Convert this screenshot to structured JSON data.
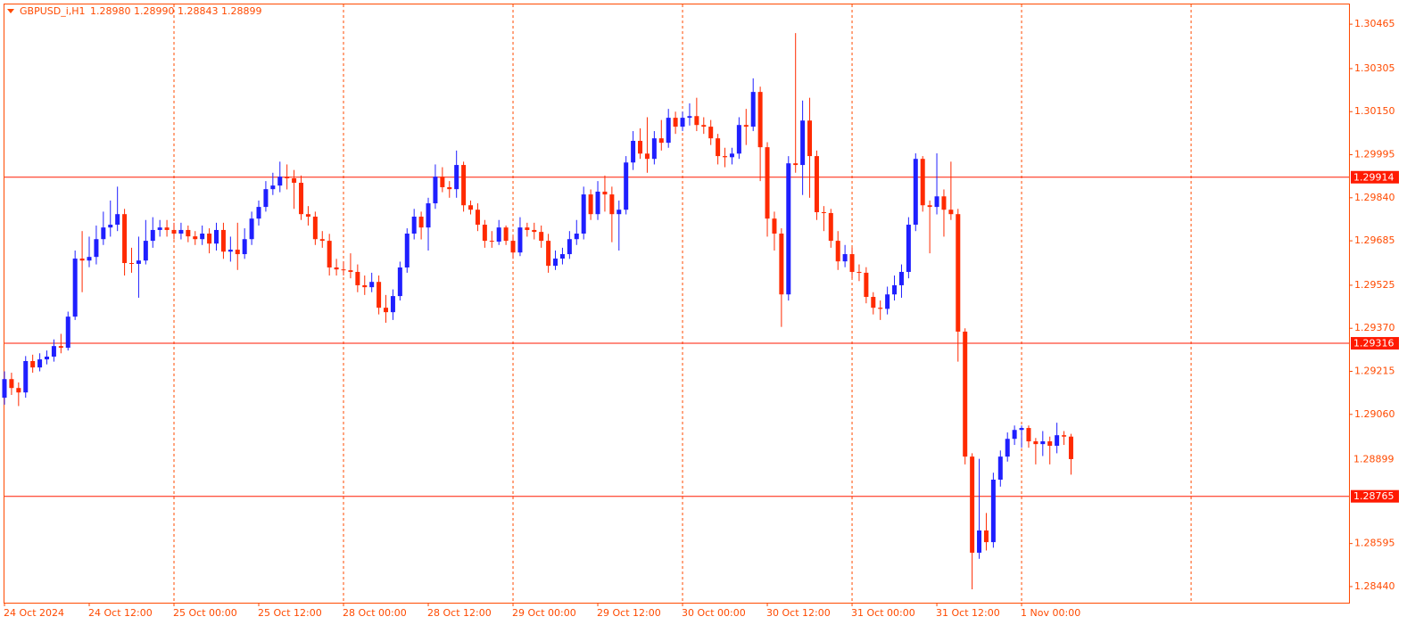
{
  "chart_data": {
    "type": "candlestick",
    "title": "GBPUSD_i,H1",
    "last_bar_labels": [
      "1.28980",
      "1.28990",
      "1.28843",
      "1.28899"
    ],
    "bull_color": "#1f1fff",
    "bear_color": "#ff2a00",
    "hline_color": "#ff1a00",
    "grid": true,
    "ylim": [
      1.28382,
      1.30536
    ],
    "yticks": [
      1.30465,
      1.30305,
      {
        "value": 1.3015,
        "label": "1.30150"
      },
      1.29995,
      {
        "value": 1.2984,
        "label": "1.29840"
      },
      1.29685,
      1.29525,
      {
        "value": 1.2937,
        "label": "1.29370"
      },
      1.29215,
      {
        "value": 1.2906,
        "label": "1.29060"
      },
      1.28595,
      {
        "value": 1.2844,
        "label": "1.28440"
      }
    ],
    "hlines": [
      1.29914,
      1.29316,
      1.28765
    ],
    "categories": [
      "24 Oct 2024",
      null,
      null,
      null,
      null,
      null,
      null,
      null,
      null,
      null,
      null,
      null,
      "24 Oct 12:00",
      null,
      null,
      null,
      null,
      null,
      null,
      null,
      null,
      null,
      null,
      null,
      "25 Oct 00:00",
      null,
      null,
      null,
      null,
      null,
      null,
      null,
      null,
      null,
      null,
      null,
      "25 Oct 12:00",
      null,
      null,
      null,
      null,
      null,
      null,
      null,
      null,
      null,
      null,
      null,
      "28 Oct 00:00",
      null,
      null,
      null,
      null,
      null,
      null,
      null,
      null,
      null,
      null,
      null,
      "28 Oct 12:00",
      null,
      null,
      null,
      null,
      null,
      null,
      null,
      null,
      null,
      null,
      null,
      "29 Oct 00:00",
      null,
      null,
      null,
      null,
      null,
      null,
      null,
      null,
      null,
      null,
      null,
      "29 Oct 12:00",
      null,
      null,
      null,
      null,
      null,
      null,
      null,
      null,
      null,
      null,
      null,
      "30 Oct 00:00",
      null,
      null,
      null,
      null,
      null,
      null,
      null,
      null,
      null,
      null,
      null,
      "30 Oct 12:00",
      null,
      null,
      null,
      null,
      null,
      null,
      null,
      null,
      null,
      null,
      null,
      "31 Oct 00:00",
      null,
      null,
      null,
      null,
      null,
      null,
      null,
      null,
      null,
      null,
      null,
      "31 Oct 12:00",
      null,
      null,
      null,
      null,
      null,
      null,
      null,
      null,
      null,
      null,
      null,
      "1 Nov 00:00",
      null,
      null,
      null,
      null,
      null,
      null,
      null
    ],
    "open": [
      1.2912,
      1.29187,
      1.29155,
      1.29139,
      1.29252,
      1.29229,
      1.29258,
      1.29268,
      1.29306,
      1.293,
      1.29412,
      1.29621,
      1.29614,
      1.29627,
      1.29691,
      1.29733,
      1.29743,
      1.29781,
      1.29605,
      1.29602,
      1.29614,
      1.29685,
      1.29724,
      1.29733,
      1.29724,
      1.29711,
      1.29724,
      1.29701,
      1.29691,
      1.29711,
      1.29675,
      1.29724,
      1.29646,
      1.29653,
      1.29637,
      1.29691,
      1.29765,
      1.29807,
      1.29871,
      1.29884,
      1.29916,
      1.2991,
      1.29894,
      1.29781,
      1.29772,
      1.29691,
      1.29685,
      1.29589,
      1.29582,
      1.29579,
      1.29573,
      1.29525,
      1.29518,
      1.29537,
      1.29444,
      1.29428,
      1.29486,
      1.29589,
      1.29711,
      1.29772,
      1.29733,
      1.2982,
      1.29916,
      1.29878,
      1.29871,
      1.29958,
      1.29813,
      1.29797,
      1.29743,
      1.29685,
      1.29682,
      1.29733,
      1.29685,
      1.29643,
      1.29733,
      1.29724,
      1.29717,
      1.29685,
      1.29595,
      1.29621,
      1.29637,
      1.29691,
      1.29711,
      1.29852,
      1.29781,
      1.29862,
      1.29852,
      1.29781,
      1.29797,
      1.29967,
      1.30045,
      1.29999,
      1.2998,
      1.30054,
      1.30038,
      1.30128,
      1.30096,
      1.30128,
      1.30134,
      1.30102,
      1.30096,
      1.30054,
      1.2999,
      1.29986,
      1.29999,
      1.30102,
      1.30096,
      1.30221,
      1.30022,
      1.29765,
      1.29711,
      1.29492,
      1.29964,
      1.29958,
      1.30118,
      1.2999,
      1.29788,
      1.29785,
      1.29685,
      1.29611,
      1.29637,
      1.29573,
      1.2957,
      1.29483,
      1.29444,
      1.2944,
      1.29492,
      1.29525,
      1.29573,
      1.29743,
      1.2998,
      1.29813,
      1.29807,
      1.29845,
      1.29797,
      1.29781,
      1.29358,
      1.28908,
      1.28562,
      1.28642,
      1.286,
      1.28825,
      1.28908,
      1.28972,
      1.29004,
      1.29011,
      1.28963,
      1.28953,
      1.28963,
      1.28947,
      1.28985,
      1.2898
    ],
    "high": [
      1.29215,
      1.2921,
      1.29175,
      1.2927,
      1.29275,
      1.2928,
      1.2929,
      1.2933,
      1.2935,
      1.2943,
      1.2965,
      1.2972,
      1.297,
      1.2974,
      1.2979,
      1.2983,
      1.2988,
      1.298,
      1.2966,
      1.297,
      1.2976,
      1.2977,
      1.2976,
      1.2976,
      1.2975,
      1.2975,
      1.2974,
      1.2972,
      1.2974,
      1.2973,
      1.2975,
      1.2975,
      1.297,
      1.2975,
      1.2973,
      1.2979,
      1.2983,
      1.299,
      1.2993,
      1.2997,
      1.2996,
      1.2994,
      1.2992,
      1.2981,
      1.2979,
      1.2972,
      1.2971,
      1.2962,
      1.2961,
      1.2964,
      1.296,
      1.2956,
      1.2957,
      1.2956,
      1.2949,
      1.2951,
      1.2961,
      1.2973,
      1.298,
      1.2979,
      1.2984,
      1.2996,
      1.2995,
      1.299,
      1.3001,
      1.2997,
      1.2983,
      1.2982,
      1.2976,
      1.2972,
      1.2976,
      1.2974,
      1.297,
      1.2977,
      1.2975,
      1.2975,
      1.2974,
      1.2971,
      1.2965,
      1.2966,
      1.2972,
      1.2976,
      1.2988,
      1.2987,
      1.299,
      1.2992,
      1.2988,
      1.2983,
      1.2999,
      1.3008,
      1.3009,
      1.3013,
      1.3008,
      1.3012,
      1.3016,
      1.3015,
      1.3015,
      1.3018,
      1.302,
      1.3013,
      1.3012,
      1.3007,
      1.3002,
      1.3002,
      1.3013,
      1.3016,
      1.3027,
      1.3024,
      1.3004,
      1.2979,
      1.2973,
      1.2999,
      1.30433,
      1.3019,
      1.302,
      1.3001,
      1.2981,
      1.298,
      1.2972,
      1.2967,
      1.2966,
      1.296,
      1.2959,
      1.295,
      1.2947,
      1.2952,
      1.2956,
      1.296,
      1.2977,
      1.3,
      1.2999,
      1.2983,
      1.3,
      1.2987,
      1.2997,
      1.298,
      1.2937,
      1.2892,
      1.289,
      1.28705,
      1.2885,
      1.2893,
      1.28995,
      1.2902,
      1.2902,
      1.2902,
      1.28975,
      1.29,
      1.2898,
      1.2903,
      1.29,
      1.2899
    ],
    "low": [
      1.29095,
      1.2913,
      1.2909,
      1.2912,
      1.2921,
      1.29215,
      1.2924,
      1.2925,
      1.2928,
      1.2929,
      1.294,
      1.295,
      1.2959,
      1.296,
      1.2967,
      1.297,
      1.2972,
      1.2956,
      1.2957,
      1.2948,
      1.296,
      1.2966,
      1.297,
      1.297,
      1.2969,
      1.2969,
      1.2968,
      1.2967,
      1.2967,
      1.2964,
      1.2965,
      1.2962,
      1.2961,
      1.2958,
      1.2962,
      1.2967,
      1.2974,
      1.2979,
      1.2985,
      1.2986,
      1.2987,
      1.298,
      1.2976,
      1.2974,
      1.2967,
      1.2966,
      1.2956,
      1.2956,
      1.2956,
      1.2955,
      1.295,
      1.2949,
      1.295,
      1.2942,
      1.2939,
      1.294,
      1.2947,
      1.2957,
      1.2969,
      1.2969,
      1.2965,
      1.298,
      1.2986,
      1.2984,
      1.2984,
      1.2979,
      1.2978,
      1.2972,
      1.2966,
      1.2966,
      1.2967,
      1.2967,
      1.2962,
      1.2963,
      1.297,
      1.2969,
      1.2966,
      1.2957,
      1.2958,
      1.296,
      1.2962,
      1.2967,
      1.2969,
      1.2976,
      1.2976,
      1.2979,
      1.2968,
      1.2965,
      1.2978,
      1.2994,
      1.2998,
      1.2993,
      1.2996,
      1.3001,
      1.3002,
      1.3007,
      1.3008,
      1.301,
      1.3008,
      1.3007,
      1.3003,
      1.2996,
      1.2995,
      1.2996,
      1.2998,
      1.3003,
      1.3008,
      1.299,
      1.297,
      1.2965,
      1.29375,
      1.2947,
      1.2993,
      1.2985,
      1.2984,
      1.2976,
      1.2972,
      1.2966,
      1.2958,
      1.2959,
      1.2955,
      1.2954,
      1.2946,
      1.2942,
      1.294,
      1.2942,
      1.2947,
      1.2948,
      1.2955,
      1.2972,
      1.2979,
      1.2964,
      1.2978,
      1.297,
      1.2976,
      1.2925,
      1.2888,
      1.2843,
      1.2854,
      1.2857,
      1.2858,
      1.288,
      1.2889,
      1.2895,
      1.2894,
      1.2894,
      1.2888,
      1.2891,
      1.2888,
      1.2892,
      1.2895,
      1.28843
    ],
    "close": [
      1.29187,
      1.29155,
      1.29139,
      1.29252,
      1.29229,
      1.29258,
      1.29268,
      1.29306,
      1.293,
      1.29412,
      1.29621,
      1.29614,
      1.29627,
      1.29691,
      1.29733,
      1.29743,
      1.29781,
      1.29605,
      1.29602,
      1.29614,
      1.29685,
      1.29724,
      1.29733,
      1.29724,
      1.29711,
      1.29724,
      1.29701,
      1.29691,
      1.29711,
      1.29675,
      1.29724,
      1.29646,
      1.29653,
      1.29637,
      1.29691,
      1.29765,
      1.29807,
      1.29871,
      1.29884,
      1.29916,
      1.2991,
      1.29894,
      1.29781,
      1.29772,
      1.29691,
      1.29685,
      1.29589,
      1.29582,
      1.29579,
      1.29573,
      1.29525,
      1.29518,
      1.29537,
      1.29444,
      1.29428,
      1.29486,
      1.29589,
      1.29711,
      1.29772,
      1.29733,
      1.2982,
      1.29916,
      1.29878,
      1.29871,
      1.29958,
      1.29813,
      1.29797,
      1.29743,
      1.29685,
      1.29682,
      1.29733,
      1.29685,
      1.29643,
      1.29733,
      1.29724,
      1.29717,
      1.29685,
      1.29595,
      1.29621,
      1.29637,
      1.29691,
      1.29711,
      1.29852,
      1.29781,
      1.29862,
      1.29852,
      1.29781,
      1.29797,
      1.29967,
      1.30045,
      1.29999,
      1.2998,
      1.30054,
      1.30038,
      1.30128,
      1.30096,
      1.30128,
      1.30134,
      1.30102,
      1.30096,
      1.30054,
      1.2999,
      1.29986,
      1.29999,
      1.30102,
      1.30096,
      1.30221,
      1.30022,
      1.29765,
      1.29711,
      1.29492,
      1.29964,
      1.29958,
      1.30118,
      1.2999,
      1.29788,
      1.29785,
      1.29685,
      1.29611,
      1.29637,
      1.29573,
      1.2957,
      1.29483,
      1.29444,
      1.2944,
      1.29492,
      1.29525,
      1.29573,
      1.29743,
      1.2998,
      1.29813,
      1.29807,
      1.29845,
      1.29797,
      1.29781,
      1.29358,
      1.28908,
      1.28562,
      1.28642,
      1.286,
      1.28825,
      1.28908,
      1.28972,
      1.29004,
      1.29011,
      1.28963,
      1.28953,
      1.28963,
      1.28947,
      1.28985,
      1.2898,
      1.28899
    ]
  }
}
